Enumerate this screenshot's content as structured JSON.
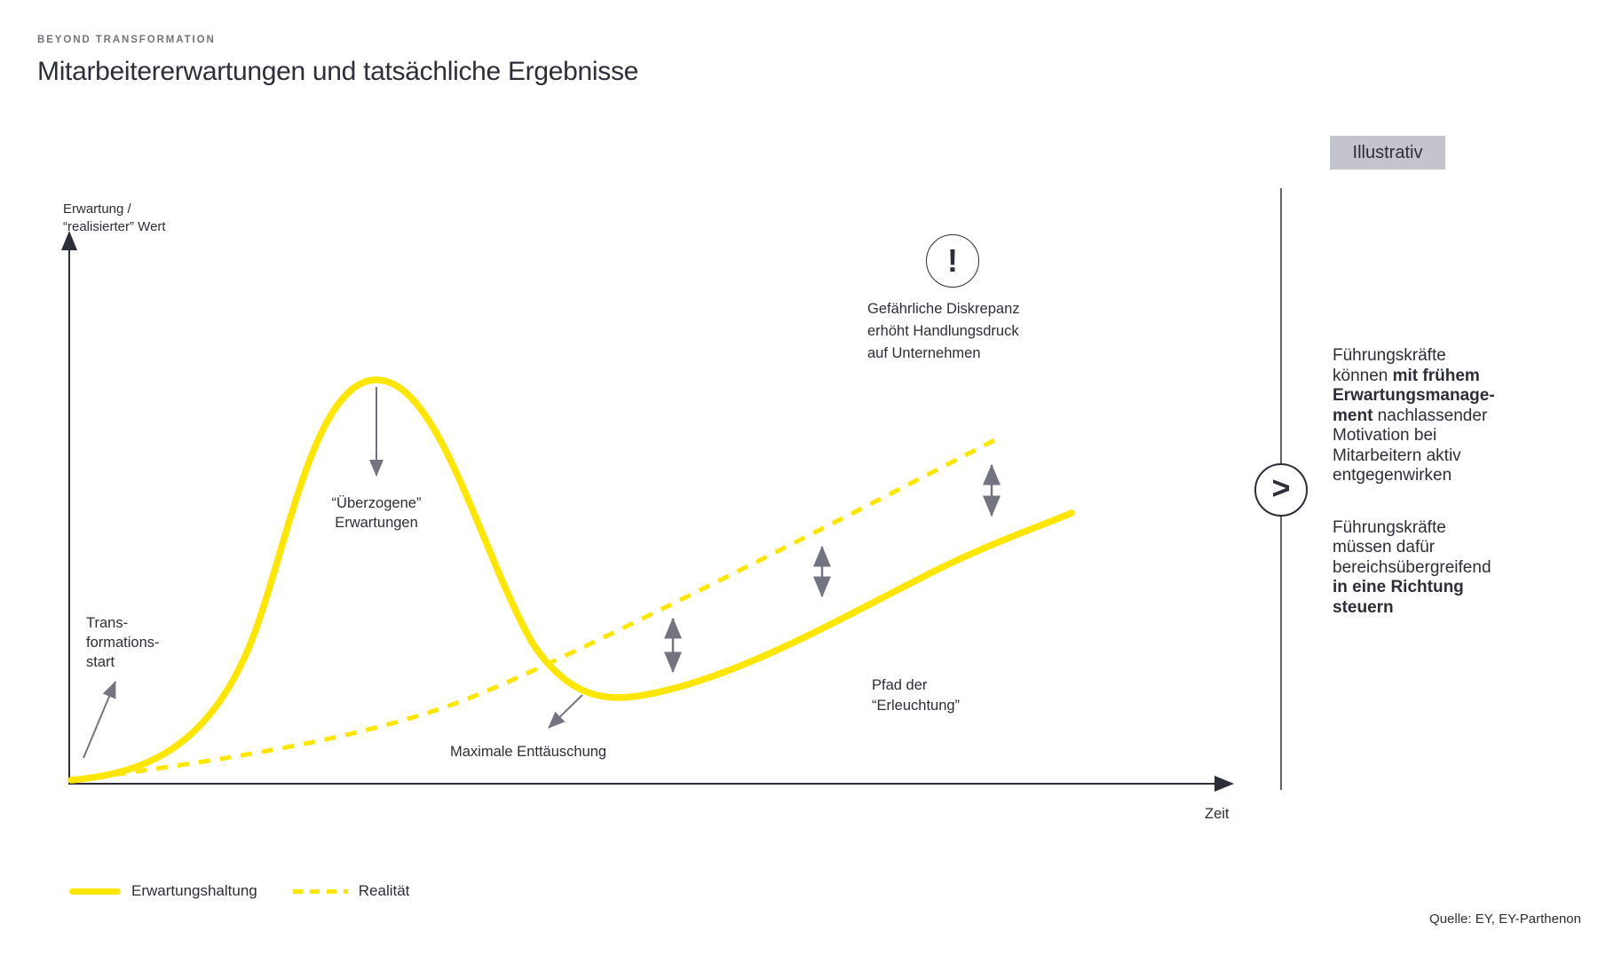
{
  "header": {
    "eyebrow": "BEYOND TRANSFORMATION",
    "title": "Mitarbeitererwartungen und tatsächliche Ergebnisse",
    "badge": "Illustrativ"
  },
  "chart": {
    "y_axis_label": [
      "Erwartung /",
      "“realisierter” Wert"
    ],
    "x_axis_label": "Zeit",
    "annotations": {
      "transformation_start": [
        "Trans-",
        "formations-",
        "start"
      ],
      "overblown_expectations": [
        "“Überzogene”",
        "Erwartungen"
      ],
      "max_disappointment": "Maximale Enttäuschung",
      "path_of_enlightenment": [
        "Pfad der",
        "“Erleuchtung”"
      ],
      "dangerous_discrepancy": [
        "Gefährliche Diskrepanz",
        "erhöht Handlungsdruck",
        "auf Unternehmen"
      ],
      "alert_glyph": "!"
    }
  },
  "legend": [
    {
      "label": "Erwartungshaltung",
      "style": "solid"
    },
    {
      "label": "Realität",
      "style": "dashed"
    }
  ],
  "side_panel": {
    "chevron_glyph": ">",
    "paragraphs": [
      {
        "lines": [
          [
            {
              "t": "Führungskräfte"
            }
          ],
          [
            {
              "t": "können "
            },
            {
              "t": "mit frühem",
              "b": true
            }
          ],
          [
            {
              "t": "Erwartungsmanage-",
              "b": true
            }
          ],
          [
            {
              "t": "ment",
              "b": true
            },
            {
              "t": " nachlassender"
            }
          ],
          [
            {
              "t": "Motivation bei"
            }
          ],
          [
            {
              "t": "Mitarbeitern aktiv"
            }
          ],
          [
            {
              "t": "entgegenwirken"
            }
          ]
        ]
      },
      {
        "lines": [
          [
            {
              "t": "Führungskräfte"
            }
          ],
          [
            {
              "t": "müssen dafür"
            }
          ],
          [
            {
              "t": "bereichsübergreifend"
            }
          ],
          [
            {
              "t": "in eine Richtung",
              "b": true
            }
          ],
          [
            {
              "t": "steuern",
              "b": true
            }
          ]
        ]
      }
    ]
  },
  "source": "Quelle: EY, EY-Parthenon",
  "colors": {
    "accent_yellow": "#FFE600",
    "text_dark": "#2E2E38",
    "muted_gray": "#747480",
    "badge_bg": "#C4C4CD"
  },
  "chart_data": {
    "type": "line",
    "title": "Mitarbeitererwartungen und tatsächliche Ergebnisse",
    "subtitle_tag": "Illustrativ",
    "xlabel": "Zeit",
    "ylabel": "Erwartung / “realisierter” Wert",
    "axes_numeric": false,
    "grid": false,
    "legend_position": "bottom-left",
    "series": [
      {
        "name": "Erwartungshaltung",
        "style": "solid",
        "color": "#FFE600",
        "x": [
          0,
          15,
          26,
          40,
          47,
          65,
          86
        ],
        "y": [
          1,
          24,
          72,
          25,
          15,
          28,
          49
        ]
      },
      {
        "name": "Realität",
        "style": "dashed",
        "color": "#FFE600",
        "x": [
          2,
          17,
          35,
          55,
          79
        ],
        "y": [
          1,
          5,
          16,
          36,
          62
        ]
      }
    ],
    "annotations": [
      {
        "text": "Trans­formations­start",
        "target": "origin of both curves"
      },
      {
        "text": "“Überzogene” Erwartungen",
        "target": "peak of Erwartungshaltung"
      },
      {
        "text": "Maximale Enttäuschung",
        "target": "trough of Erwartungshaltung"
      },
      {
        "text": "Pfad der “Erleuchtung”",
        "target": "rising tail of Erwartungshaltung"
      },
      {
        "text": "Gefährliche Diskrepanz erhöht Handlungsdruck auf Unternehmen",
        "target": "gap between Realität and Erwartungshaltung",
        "icon": "!"
      }
    ],
    "gap_arrows_x": [
      52,
      64,
      79
    ],
    "side_notes": [
      "Führungskräfte können mit frühem Erwartungsmanagement nachlassender Motivation bei Mitarbeitern aktiv entgegenwirken",
      "Führungskräfte müssen dafür bereichsübergreifend in eine Richtung steuern"
    ],
    "source": "Quelle: EY, EY-Parthenon"
  }
}
